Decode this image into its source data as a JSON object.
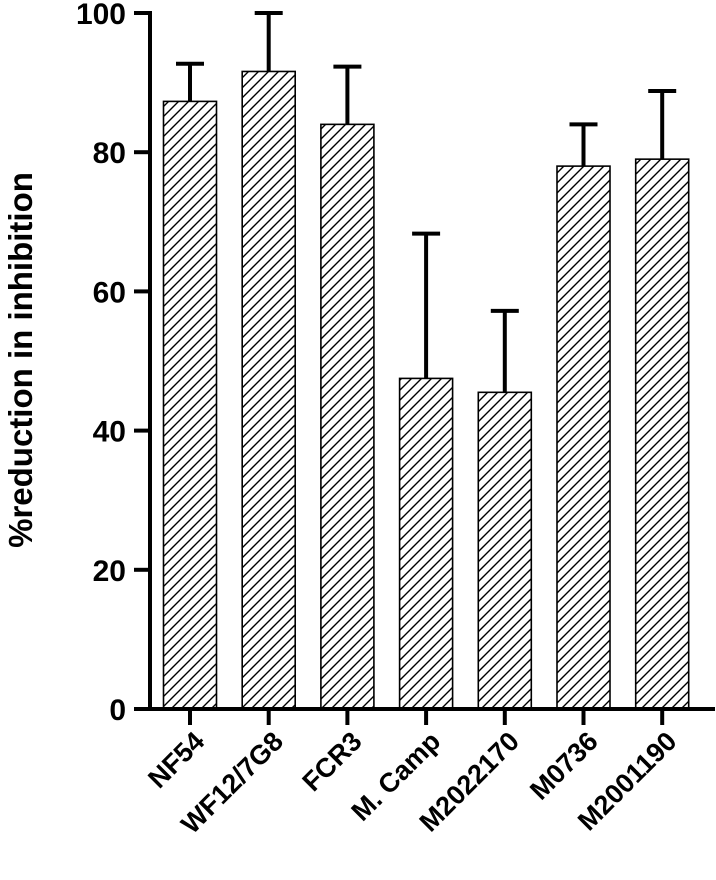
{
  "chart_data": {
    "type": "bar",
    "title": "",
    "xlabel": "",
    "ylabel": "%reduction in inhibition",
    "categories": [
      "NF54",
      "WF12/7G8",
      "FCR3",
      "M. Camp",
      "M2022170",
      "M0736",
      "M2001190"
    ],
    "values": [
      87.3,
      91.6,
      84.0,
      47.5,
      45.5,
      78.0,
      79.0
    ],
    "error_upper": [
      92.7,
      100.0,
      92.3,
      68.3,
      57.2,
      84.0,
      88.8
    ],
    "ylim": [
      0,
      100
    ],
    "yticks": [
      0,
      20,
      40,
      60,
      80,
      100
    ],
    "grid": false,
    "bar_fill": "hatched",
    "bar_color": "#000000",
    "background": "#ffffff"
  }
}
